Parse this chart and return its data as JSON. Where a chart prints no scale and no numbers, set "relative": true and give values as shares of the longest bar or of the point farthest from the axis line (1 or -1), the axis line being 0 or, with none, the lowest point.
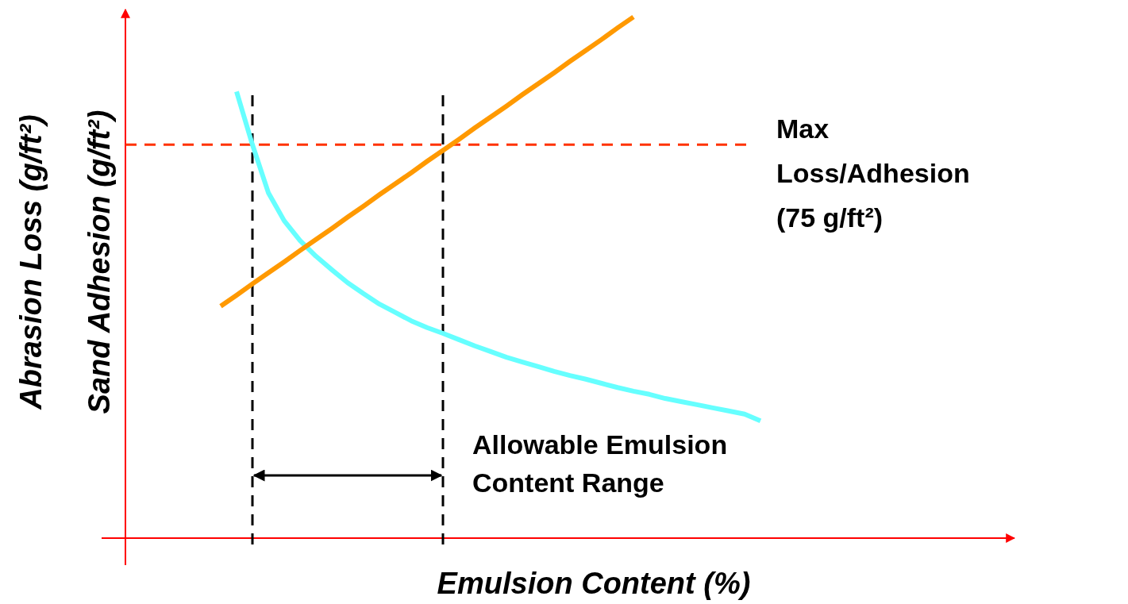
{
  "chart_data": {
    "type": "line",
    "xlabel": "Emulsion Content (%)",
    "ylabel": "Sand Adhesion (g/ft²)",
    "relative": true,
    "line_style": "solid",
    "categories": [
      null,
      null,
      null,
      null,
      null,
      null,
      null,
      null,
      null,
      null,
      null,
      null,
      null,
      null,
      null,
      null,
      null,
      null,
      null,
      null,
      null,
      null,
      null,
      null,
      null,
      null,
      null,
      null,
      null,
      null,
      null,
      null,
      null,
      null,
      null
    ],
    "series": [
      {
        "color": "#66ffff",
        "values": [
          null,
          0.857,
          0.755,
          0.663,
          0.609,
          0.571,
          0.541,
          0.515,
          0.49,
          0.469,
          0.449,
          0.433,
          0.417,
          0.404,
          0.393,
          0.381,
          0.369,
          0.358,
          0.347,
          0.338,
          0.329,
          0.32,
          0.312,
          0.305,
          0.297,
          0.289,
          0.282,
          0.276,
          0.268,
          0.262,
          0.256,
          0.25,
          0.244,
          0.238,
          0.225
        ]
      },
      {
        "color": "#ff9900",
        "values": [
          0.445,
          0.466,
          0.488,
          0.509,
          0.53,
          0.552,
          0.573,
          0.594,
          0.616,
          0.637,
          0.659,
          0.68,
          0.701,
          0.723,
          0.744,
          0.765,
          0.787,
          0.808,
          0.829,
          0.851,
          0.872,
          0.893,
          0.915,
          0.936,
          0.957,
          0.979,
          1,
          null,
          null,
          null,
          null,
          null,
          null,
          null,
          null
        ]
      }
    ],
    "ref_lines": [
      {
        "axis": "y",
        "value": 0.755,
        "label": "Max Loss/Adhesion (75 g/ft²)",
        "color": "#ff3300",
        "line_style": "dashed"
      }
    ],
    "annotations": [
      "Abrasion Loss (g/ft²)",
      "Allowable Emulsion Content Range"
    ]
  }
}
